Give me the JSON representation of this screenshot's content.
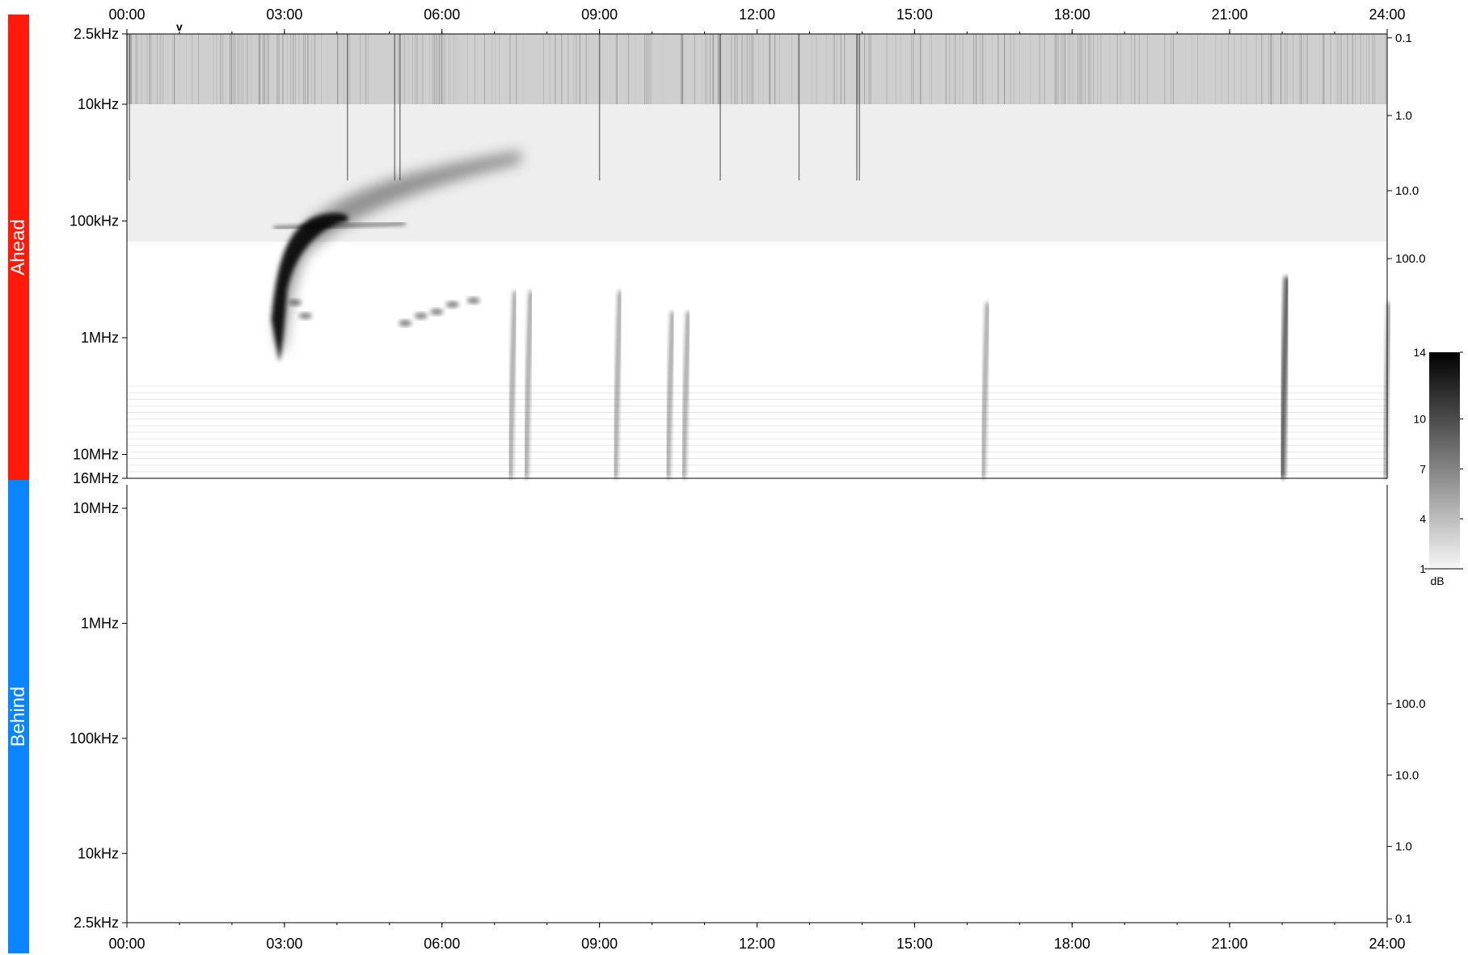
{
  "panels": {
    "ahead": {
      "label": "Ahead",
      "color": "#ff1a0a"
    },
    "behind": {
      "label": "Behind",
      "color": "#0a84ff"
    }
  },
  "chart_data": {
    "type": "heatmap",
    "title": "",
    "time_ticks": [
      "00:00",
      "03:00",
      "06:00",
      "09:00",
      "12:00",
      "15:00",
      "18:00",
      "21:00",
      "24:00"
    ],
    "time_range_hours": [
      0,
      24
    ],
    "marker": {
      "symbol": "v",
      "time_hours": 1.0
    },
    "ahead": {
      "freq_ticks": [
        {
          "label": "2.5kHz",
          "hz": 2500
        },
        {
          "label": "10kHz",
          "hz": 10000
        },
        {
          "label": "100kHz",
          "hz": 100000
        },
        {
          "label": "1MHz",
          "hz": 1000000
        },
        {
          "label": "10MHz",
          "hz": 10000000
        },
        {
          "label": "16MHz",
          "hz": 16000000
        }
      ],
      "freq_range_hz": [
        2500,
        16000000
      ],
      "right_ticks": [
        "0.1",
        "1.0",
        "10.0",
        "100.0"
      ],
      "features": [
        {
          "name": "type-II burst",
          "time_start": 2.7,
          "time_end": 5.4,
          "freq_start_hz": 1600000,
          "freq_end_hz": 20000
        },
        {
          "name": "type-III burst",
          "time_hours": 7.3,
          "freq_start_hz": 16000000,
          "freq_end_hz": 400000
        },
        {
          "name": "type-III burst",
          "time_hours": 7.6,
          "freq_start_hz": 16000000,
          "freq_end_hz": 400000
        },
        {
          "name": "type-III burst",
          "time_hours": 9.3,
          "freq_start_hz": 16000000,
          "freq_end_hz": 400000
        },
        {
          "name": "type-III burst",
          "time_hours": 10.3,
          "freq_start_hz": 16000000,
          "freq_end_hz": 600000
        },
        {
          "name": "type-III burst",
          "time_hours": 10.6,
          "freq_start_hz": 16000000,
          "freq_end_hz": 600000
        },
        {
          "name": "type-III burst",
          "time_hours": 16.3,
          "freq_start_hz": 16000000,
          "freq_end_hz": 500000
        },
        {
          "name": "type-III burst",
          "time_hours": 22.0,
          "freq_start_hz": 16000000,
          "freq_end_hz": 300000
        },
        {
          "name": "type-III burst",
          "time_hours": 23.95,
          "freq_start_hz": 16000000,
          "freq_end_hz": 500000
        }
      ]
    },
    "behind": {
      "freq_ticks": [
        {
          "label": "10MHz",
          "hz": 10000000
        },
        {
          "label": "1MHz",
          "hz": 1000000
        },
        {
          "label": "100kHz",
          "hz": 100000
        },
        {
          "label": "10kHz",
          "hz": 10000
        },
        {
          "label": "2.5kHz",
          "hz": 2500
        }
      ],
      "freq_range_hz": [
        2500,
        16000000
      ],
      "right_ticks": [
        "100.0",
        "10.0",
        "1.0",
        "0.1"
      ]
    },
    "colorbar": {
      "ticks": [
        "14",
        "10",
        "7",
        "4",
        "1"
      ],
      "range": [
        1,
        14
      ],
      "unit": "dB"
    }
  }
}
